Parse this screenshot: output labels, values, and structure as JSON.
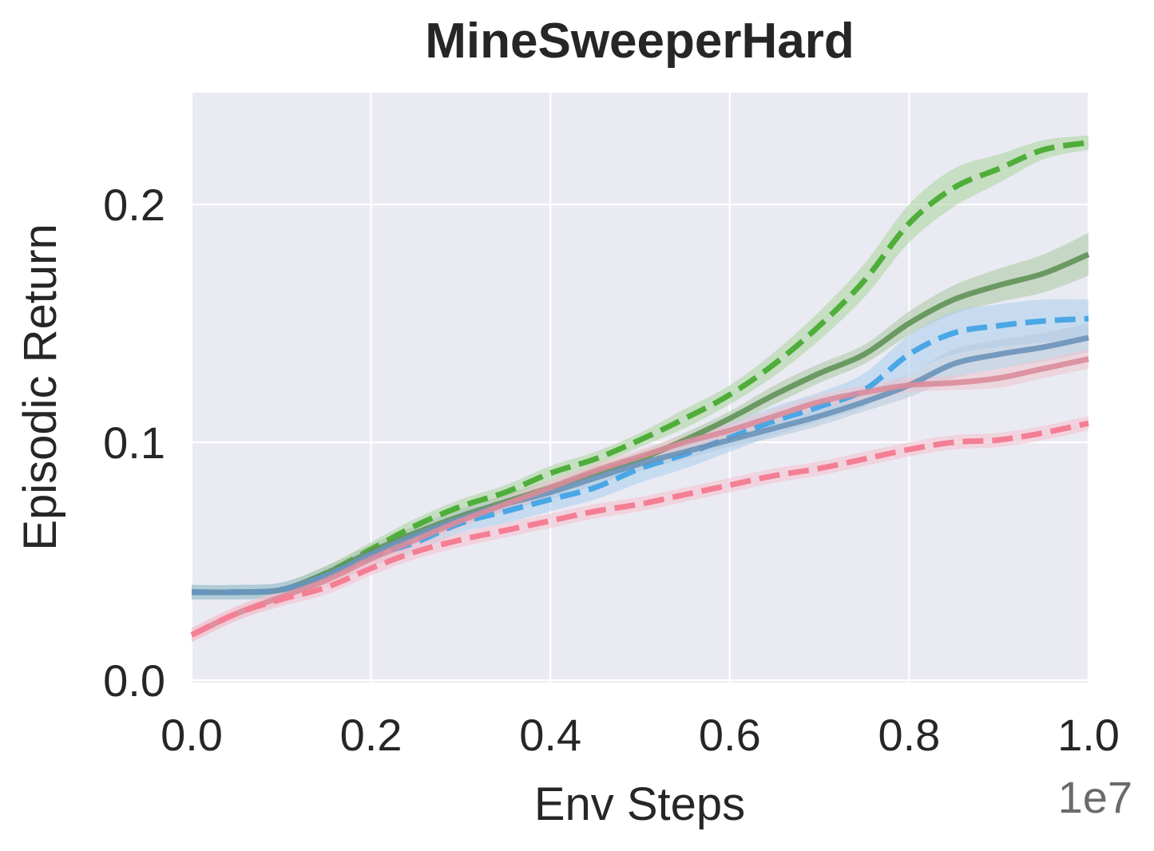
{
  "chart_data": {
    "type": "line",
    "title": "MineSweeperHard",
    "xlabel": "Env Steps",
    "ylabel": "Episodic Return",
    "x_offset_label": "1e7",
    "xlim": [
      0.0,
      1.0
    ],
    "ylim": [
      -0.001,
      0.247
    ],
    "xticks": [
      0.0,
      0.2,
      0.4,
      0.6,
      0.8,
      1.0
    ],
    "xtick_labels": [
      "0.0",
      "0.2",
      "0.4",
      "0.6",
      "0.8",
      "1.0"
    ],
    "yticks": [
      0.0,
      0.1,
      0.2
    ],
    "ytick_labels": [
      "0.0",
      "0.1",
      "0.2"
    ],
    "grid": true,
    "background": "#eaeaf2",
    "series": [
      {
        "name": "green-dashed",
        "color": "#4fae3a",
        "band_color": "#a8d49a",
        "dash": true,
        "x": [
          0.0,
          0.05,
          0.1,
          0.15,
          0.2,
          0.25,
          0.3,
          0.35,
          0.4,
          0.45,
          0.5,
          0.55,
          0.6,
          0.65,
          0.7,
          0.75,
          0.8,
          0.85,
          0.9,
          0.95,
          1.0
        ],
        "y": [
          0.037,
          0.037,
          0.038,
          0.045,
          0.055,
          0.065,
          0.073,
          0.079,
          0.087,
          0.093,
          0.101,
          0.11,
          0.12,
          0.133,
          0.149,
          0.168,
          0.192,
          0.207,
          0.215,
          0.223,
          0.226
        ],
        "band": [
          0.003,
          0.003,
          0.003,
          0.003,
          0.003,
          0.003,
          0.003,
          0.003,
          0.003,
          0.003,
          0.003,
          0.004,
          0.004,
          0.005,
          0.006,
          0.007,
          0.008,
          0.008,
          0.006,
          0.004,
          0.003
        ]
      },
      {
        "name": "darkgreen-solid",
        "color": "#5f9357",
        "band_color": "#aac7a3",
        "dash": false,
        "x": [
          0.0,
          0.05,
          0.1,
          0.15,
          0.2,
          0.25,
          0.3,
          0.35,
          0.4,
          0.45,
          0.5,
          0.55,
          0.6,
          0.65,
          0.7,
          0.75,
          0.8,
          0.85,
          0.9,
          0.95,
          1.0
        ],
        "y": [
          0.037,
          0.037,
          0.038,
          0.045,
          0.054,
          0.062,
          0.069,
          0.075,
          0.081,
          0.087,
          0.093,
          0.101,
          0.11,
          0.12,
          0.129,
          0.137,
          0.15,
          0.16,
          0.166,
          0.171,
          0.179
        ],
        "band": [
          0.003,
          0.003,
          0.003,
          0.003,
          0.003,
          0.003,
          0.003,
          0.003,
          0.003,
          0.003,
          0.003,
          0.003,
          0.003,
          0.004,
          0.004,
          0.004,
          0.005,
          0.006,
          0.007,
          0.008,
          0.009
        ]
      },
      {
        "name": "blue-dashed",
        "color": "#4aa7e6",
        "band_color": "#a9cdee",
        "dash": true,
        "x": [
          0.0,
          0.05,
          0.1,
          0.15,
          0.2,
          0.25,
          0.3,
          0.35,
          0.4,
          0.45,
          0.5,
          0.55,
          0.6,
          0.65,
          0.7,
          0.75,
          0.8,
          0.85,
          0.9,
          0.95,
          1.0
        ],
        "y": [
          0.037,
          0.037,
          0.038,
          0.044,
          0.052,
          0.058,
          0.066,
          0.071,
          0.076,
          0.081,
          0.089,
          0.095,
          0.102,
          0.109,
          0.115,
          0.122,
          0.137,
          0.146,
          0.149,
          0.151,
          0.152
        ],
        "band": [
          0.003,
          0.003,
          0.003,
          0.003,
          0.004,
          0.004,
          0.004,
          0.005,
          0.005,
          0.005,
          0.006,
          0.006,
          0.006,
          0.006,
          0.006,
          0.007,
          0.008,
          0.009,
          0.009,
          0.009,
          0.008
        ]
      },
      {
        "name": "steelblue-solid",
        "color": "#6b93b8",
        "band_color": "#b3c8dc",
        "dash": false,
        "x": [
          0.0,
          0.05,
          0.1,
          0.15,
          0.2,
          0.25,
          0.3,
          0.35,
          0.4,
          0.45,
          0.5,
          0.55,
          0.6,
          0.65,
          0.7,
          0.75,
          0.8,
          0.85,
          0.9,
          0.95,
          1.0
        ],
        "y": [
          0.037,
          0.037,
          0.038,
          0.044,
          0.053,
          0.061,
          0.068,
          0.074,
          0.079,
          0.085,
          0.091,
          0.096,
          0.101,
          0.106,
          0.111,
          0.117,
          0.124,
          0.133,
          0.137,
          0.14,
          0.144
        ],
        "band": [
          0.003,
          0.003,
          0.003,
          0.003,
          0.003,
          0.003,
          0.003,
          0.003,
          0.003,
          0.003,
          0.003,
          0.003,
          0.003,
          0.004,
          0.004,
          0.004,
          0.005,
          0.006,
          0.006,
          0.006,
          0.006
        ]
      },
      {
        "name": "rose-solid",
        "color": "#d98c9b",
        "band_color": "#eec3cc",
        "dash": false,
        "x": [
          0.0,
          0.05,
          0.1,
          0.15,
          0.2,
          0.25,
          0.3,
          0.35,
          0.4,
          0.45,
          0.5,
          0.55,
          0.6,
          0.65,
          0.7,
          0.75,
          0.8,
          0.85,
          0.9,
          0.95,
          1.0
        ],
        "y": [
          0.019,
          0.028,
          0.035,
          0.042,
          0.051,
          0.059,
          0.067,
          0.074,
          0.081,
          0.088,
          0.094,
          0.1,
          0.105,
          0.111,
          0.117,
          0.121,
          0.124,
          0.125,
          0.127,
          0.131,
          0.135
        ],
        "band": [
          0.003,
          0.003,
          0.003,
          0.003,
          0.003,
          0.003,
          0.003,
          0.003,
          0.003,
          0.003,
          0.003,
          0.003,
          0.003,
          0.003,
          0.003,
          0.003,
          0.003,
          0.003,
          0.004,
          0.004,
          0.004
        ]
      },
      {
        "name": "pink-dashed",
        "color": "#f47e93",
        "band_color": "#f4c0cd",
        "dash": true,
        "x": [
          0.0,
          0.05,
          0.1,
          0.15,
          0.2,
          0.25,
          0.3,
          0.35,
          0.4,
          0.45,
          0.5,
          0.55,
          0.6,
          0.65,
          0.7,
          0.75,
          0.8,
          0.85,
          0.9,
          0.95,
          1.0
        ],
        "y": [
          0.019,
          0.028,
          0.034,
          0.039,
          0.047,
          0.054,
          0.059,
          0.063,
          0.067,
          0.071,
          0.074,
          0.078,
          0.082,
          0.086,
          0.089,
          0.093,
          0.097,
          0.1,
          0.101,
          0.104,
          0.108
        ],
        "band": [
          0.003,
          0.003,
          0.003,
          0.003,
          0.003,
          0.003,
          0.003,
          0.003,
          0.003,
          0.003,
          0.003,
          0.003,
          0.003,
          0.003,
          0.003,
          0.003,
          0.003,
          0.003,
          0.003,
          0.003,
          0.003
        ]
      }
    ]
  }
}
